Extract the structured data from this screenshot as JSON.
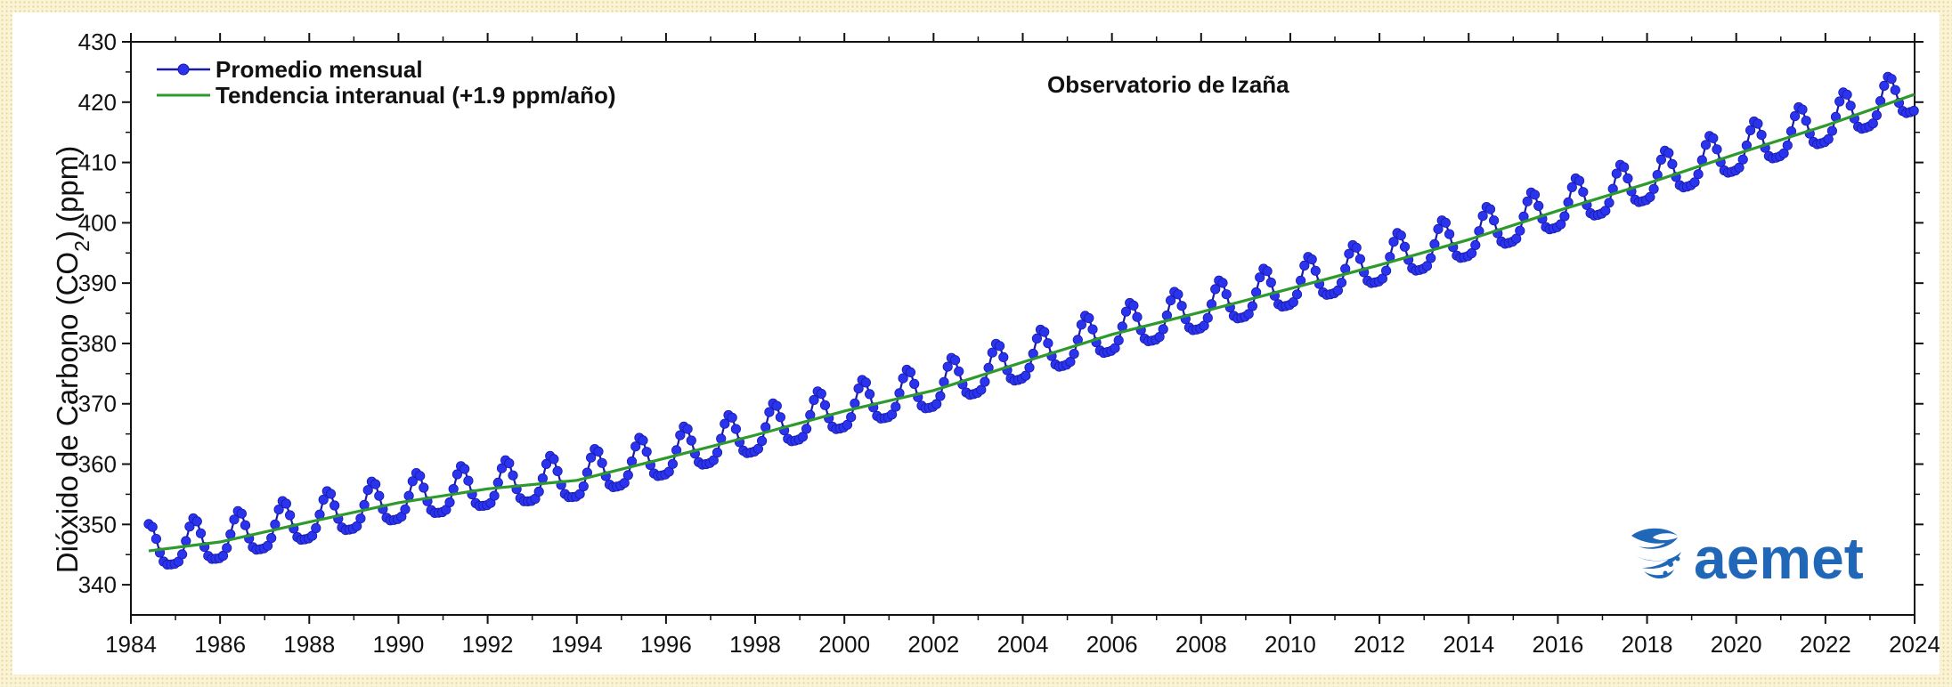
{
  "chart_data": {
    "type": "line",
    "title": "",
    "annotation": "Observatorio de Izaña",
    "ylabel": "Dióxido de Carbono (CO",
    "ylabel_sub": "2",
    "ylabel_tail": ") (ppm)",
    "xlim": [
      1984,
      2024
    ],
    "ylim": [
      335,
      430
    ],
    "xticks": [
      1984,
      1986,
      1988,
      1990,
      1992,
      1994,
      1996,
      1998,
      2000,
      2002,
      2004,
      2006,
      2008,
      2010,
      2012,
      2014,
      2016,
      2018,
      2020,
      2022,
      2024
    ],
    "yticks": [
      340,
      350,
      360,
      370,
      380,
      390,
      400,
      410,
      420,
      430
    ],
    "legend_position": "top-left",
    "grid": false,
    "series": [
      {
        "name": "Promedio mensual",
        "kind": "monthly-points",
        "color": "#1a1aa8",
        "point_color": "#2a33ee",
        "x_start": 1984.4,
        "x_end": 2024.0,
        "points_per_year": 12,
        "trend_formula": "same as Tendencia interanual",
        "seasonal_amplitude_ppm": 3.6,
        "seasonal_peak_month": 5
      },
      {
        "name": "Tendencia interanual (+1.9 ppm/año)",
        "kind": "trend-line",
        "color": "#2e9a2e",
        "x": [
          1984.4,
          1986,
          1988,
          1990,
          1992,
          1994,
          1996,
          1998,
          2000,
          2002,
          2004,
          2006,
          2008,
          2010,
          2012,
          2014,
          2016,
          2018,
          2020,
          2022,
          2024
        ],
        "y": [
          345.6,
          347.1,
          350.4,
          353.6,
          355.9,
          357.3,
          361.0,
          364.8,
          368.8,
          372.2,
          376.9,
          381.5,
          385.2,
          389.1,
          393.0,
          397.2,
          402.0,
          406.5,
          411.4,
          416.1,
          421.3
        ]
      }
    ]
  },
  "legend": {
    "items": [
      {
        "label": "Promedio mensual"
      },
      {
        "label": "Tendencia interanual (+1.9 ppm/año)"
      }
    ]
  },
  "logo": {
    "text": "aemet",
    "icon": "aemet-logo-icon",
    "color": "#2067b8"
  }
}
